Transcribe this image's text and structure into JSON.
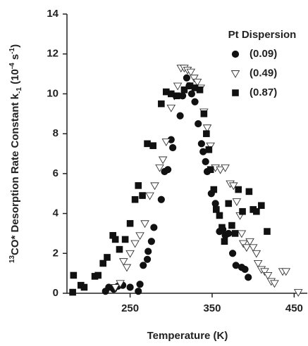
{
  "chart_data": {
    "type": "scatter",
    "xlabel": "Temperature (K)",
    "ylabel": {
      "parts": [
        "13",
        "CO* Desorption Rate Constant k",
        "-1",
        " (10",
        "-4",
        " s",
        "-1",
        ")"
      ],
      "shifts": [
        "super",
        "normal",
        "sub",
        "normal",
        "super",
        "normal",
        "super",
        "normal"
      ]
    },
    "legend_title": "Pt Dispersion",
    "legend": "upper right",
    "xlim": [
      173,
      466
    ],
    "ylim": [
      0,
      14
    ],
    "xticks": [
      250,
      350,
      450
    ],
    "yticks": [
      0,
      2,
      4,
      6,
      8,
      10,
      12,
      14
    ],
    "series": [
      {
        "name": "(0.09)",
        "color": "#111111",
        "marker": "circle",
        "x": [
          220,
          224,
          230,
          235,
          241,
          250,
          260,
          262,
          266,
          271,
          272,
          276,
          279,
          288,
          292,
          296,
          300,
          302,
          311,
          314,
          319,
          322,
          325,
          329,
          333,
          337,
          339,
          342,
          344,
          349,
          354,
          359,
          363,
          366,
          370,
          375,
          379,
          386,
          390,
          394
        ],
        "values": [
          0.1,
          0.3,
          0.2,
          0.35,
          0.4,
          0.3,
          0.1,
          0.45,
          1.4,
          1.7,
          2.1,
          2.6,
          3.3,
          4.7,
          6.1,
          6.2,
          7.7,
          7.3,
          8.9,
          9.9,
          10.8,
          10.4,
          10.0,
          9.6,
          8.5,
          7.5,
          7.1,
          6.6,
          6.1,
          5.0,
          4.5,
          3.1,
          3.2,
          2.9,
          3.0,
          2.0,
          1.4,
          1.3,
          1.2,
          0.8
        ]
      },
      {
        "name": "(0.49)",
        "color": "#ffffff",
        "marker": "triangle-down",
        "x": [
          232,
          238,
          242,
          246,
          250,
          256,
          262,
          268,
          274,
          280,
          286,
          290,
          294,
          300,
          304,
          308,
          312,
          316,
          320,
          324,
          328,
          332,
          336,
          340,
          344,
          348,
          354,
          360,
          366,
          372,
          376,
          380,
          384,
          386,
          388,
          392,
          396,
          400,
          404,
          406,
          410,
          414,
          418,
          422,
          426,
          436,
          440,
          455
        ],
        "values": [
          0.3,
          0.5,
          1.6,
          1.3,
          2.0,
          2.5,
          2.9,
          3.5,
          4.9,
          5.4,
          6.3,
          6.7,
          7.6,
          9.3,
          9.9,
          10.4,
          11.3,
          11.3,
          11.2,
          11.1,
          10.8,
          10.6,
          10.3,
          9.1,
          8.3,
          7.4,
          6.3,
          6.2,
          6.3,
          5.5,
          5.4,
          4.6,
          3.9,
          3.0,
          2.5,
          2.3,
          2.6,
          2.3,
          2.0,
          1.5,
          1.2,
          1.1,
          0.9,
          0.6,
          0.5,
          1.1,
          1.1,
          0.05
        ]
      },
      {
        "name": "(0.87)",
        "color": "#111111",
        "marker": "square",
        "x": [
          180,
          181,
          190,
          194,
          207,
          211,
          217,
          222,
          229,
          232,
          237,
          244,
          250,
          256,
          260,
          265,
          271,
          278,
          288,
          294,
          300,
          307,
          316,
          323,
          329,
          335,
          340,
          343,
          346,
          348,
          352,
          355,
          359,
          362,
          365,
          370,
          374,
          378,
          382,
          387,
          395,
          400,
          404,
          410,
          417
        ],
        "values": [
          0.05,
          0.9,
          0.4,
          0.3,
          0.85,
          0.9,
          1.5,
          1.8,
          2.9,
          2.7,
          2.2,
          2.7,
          3.5,
          4.7,
          5.4,
          4.9,
          7.5,
          7.4,
          9.5,
          10.1,
          10.0,
          9.9,
          10.2,
          10.4,
          10.3,
          10.2,
          9.0,
          8.0,
          7.2,
          6.2,
          5.2,
          4.2,
          3.9,
          3.3,
          2.6,
          4.5,
          3.4,
          3.0,
          5.2,
          4.1,
          5.1,
          4.2,
          4.1,
          4.4,
          3.1
        ]
      }
    ]
  }
}
